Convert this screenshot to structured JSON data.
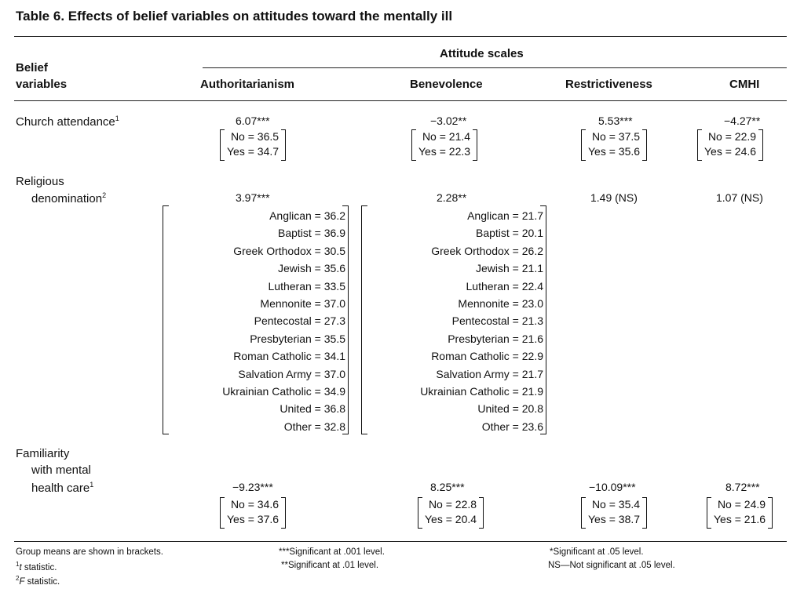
{
  "title": "Table 6. Effects of belief variables on attitudes toward the mentally ill",
  "header": {
    "row_header_line1": "Belief",
    "row_header_line2": "variables",
    "span_header": "Attitude scales",
    "columns": [
      "Authoritarianism",
      "Benevolence",
      "Restrictiveness",
      "CMHI"
    ]
  },
  "rows": {
    "church": {
      "label": "Church attendance",
      "sup": "1",
      "stats": [
        "6.07***",
        "−3.02**",
        "5.53***",
        "−4.27**"
      ],
      "no": [
        "No = 36.5",
        "No = 21.4",
        "No = 37.5",
        "No = 22.9"
      ],
      "yes": [
        "Yes = 34.7",
        "Yes = 22.3",
        "Yes = 35.6",
        "Yes = 24.6"
      ]
    },
    "religion": {
      "label_line1": "Religious",
      "label_line2": "denomination",
      "sup": "2",
      "stats": [
        "3.97***",
        "2.28**",
        "1.49 (NS)",
        "1.07 (NS)"
      ],
      "authoritarianism": [
        "Anglican = 36.2",
        "Baptist = 36.9",
        "Greek Orthodox = 30.5",
        "Jewish = 35.6",
        "Lutheran = 33.5",
        "Mennonite = 37.0",
        "Pentecostal = 27.3",
        "Presbyterian = 35.5",
        "Roman Catholic = 34.1",
        "Salvation Army = 37.0",
        "Ukrainian Catholic = 34.9",
        "United = 36.8",
        "Other = 32.8"
      ],
      "benevolence": [
        "Anglican = 21.7",
        "Baptist = 20.1",
        "Greek Orthodox = 26.2",
        "Jewish = 21.1",
        "Lutheran = 22.4",
        "Mennonite = 23.0",
        "Pentecostal = 21.3",
        "Presbyterian = 21.6",
        "Roman Catholic = 22.9",
        "Salvation Army = 21.7",
        "Ukrainian Catholic = 21.9",
        "United = 20.8",
        "Other = 23.6"
      ]
    },
    "familiarity": {
      "label_line1": "Familiarity",
      "label_line2": "with mental",
      "label_line3": "health care",
      "sup": "1",
      "stats": [
        "−9.23***",
        "8.25***",
        "−10.09***",
        "8.72***"
      ],
      "no": [
        "No = 34.6",
        "No = 22.8",
        "No = 35.4",
        "No = 24.9"
      ],
      "yes": [
        "Yes = 37.6",
        "Yes = 20.4",
        "Yes = 38.7",
        "Yes = 21.6"
      ]
    }
  },
  "footnotes": {
    "group_means": "Group means are shown in brackets.",
    "t_sup": "1",
    "t_label": "t",
    "t_rest": " statistic.",
    "f_sup": "2",
    "f_label": "F",
    "f_rest": " statistic.",
    "sig001": "***Significant at .001 level.",
    "sig01": "**Significant at .01 level.",
    "sig05": "*Significant at .05 level.",
    "ns": "NS—Not significant at .05 level."
  }
}
